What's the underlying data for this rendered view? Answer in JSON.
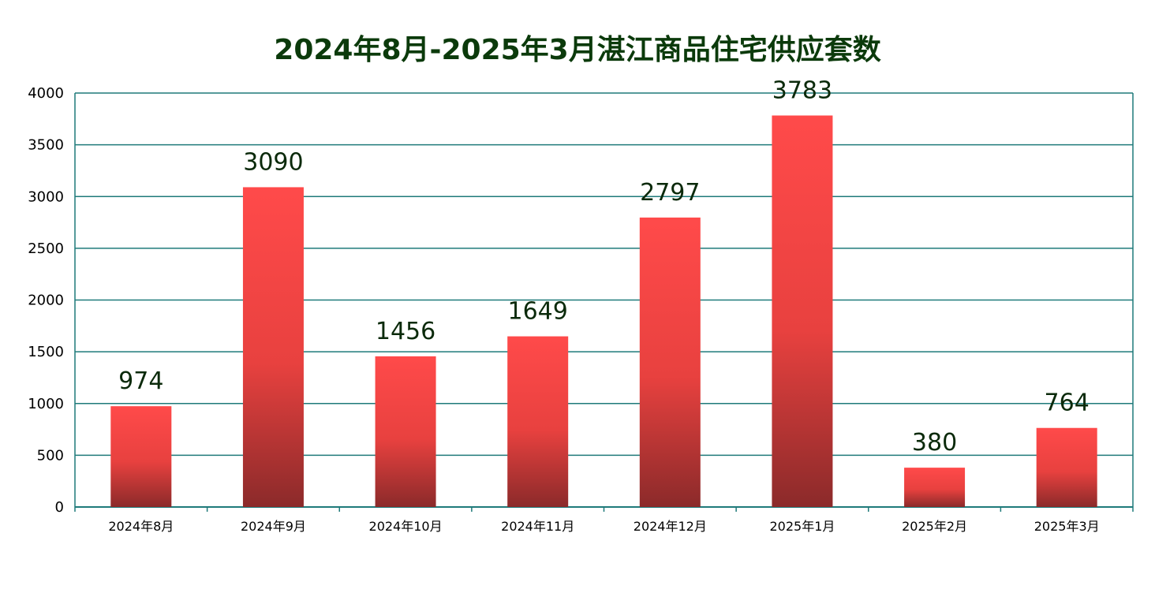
{
  "chart_data": {
    "type": "bar",
    "title": "2024年8月-2025年3月湛江商品住宅供应套数",
    "categories": [
      "2024年8月",
      "2024年9月",
      "2024年10月",
      "2024年11月",
      "2024年12月",
      "2025年1月",
      "2025年2月",
      "2025年3月"
    ],
    "values": [
      974,
      3090,
      1456,
      1649,
      2797,
      3783,
      380,
      764
    ],
    "data_labels": [
      "974",
      "3090",
      "1456",
      "1649",
      "2797",
      "3783",
      "380",
      "764"
    ],
    "xlabel": "",
    "ylabel": "",
    "ylim": [
      0,
      4000
    ],
    "yticks": [
      0,
      500,
      1000,
      1500,
      2000,
      2500,
      3000,
      3500,
      4000
    ],
    "ytick_labels": [
      "0",
      "500",
      "1000",
      "1500",
      "2000",
      "2500",
      "3000",
      "3500",
      "4000"
    ],
    "grid": true,
    "legend": "none",
    "colors": {
      "bar_top": "#ff4a4a",
      "bar_mid": "#e8413f",
      "bar_bottom": "#8b2a2a",
      "axis": "#1f7a7a",
      "grid": "#1f7a7a",
      "title": "#0b3a0b"
    }
  }
}
